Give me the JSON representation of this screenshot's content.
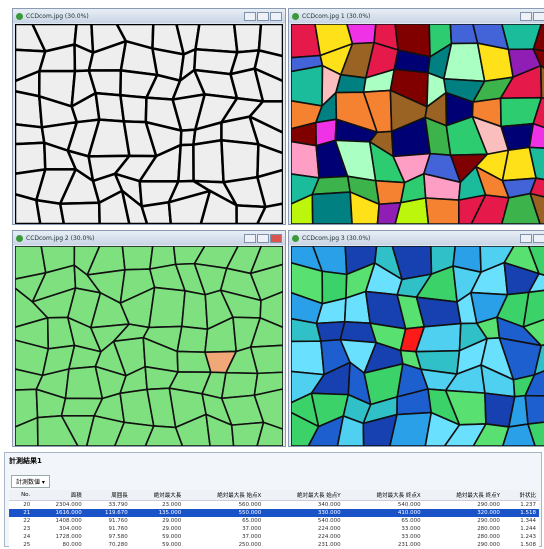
{
  "windows": [
    {
      "title": "CCDcom.jpg (30.0%)"
    },
    {
      "title": "CCDcom.jpg 1 (30.0%)"
    },
    {
      "title": "CCDcom.jpg 2 (30.0%)"
    },
    {
      "title": "CCDcom.jpg 3 (30.0%)"
    }
  ],
  "results": {
    "title": "計測結果1",
    "tab": "計測数値 ▾",
    "headers": [
      "No.",
      "面積",
      "周囲長",
      "絶対最大長",
      "絶対最大長 始点X",
      "絶対最大長 始点Y",
      "絶対最大長 終点X",
      "絶対最大長 終点Y",
      "針状比"
    ],
    "rows": [
      [
        "20",
        "2304.000",
        "33.790",
        "23.000",
        "560.000",
        "340.000",
        "540.000",
        "290.000",
        "1.237"
      ],
      [
        "21",
        "1616.000",
        "119.670",
        "135.000",
        "550.000",
        "330.000",
        "410.000",
        "320.000",
        "1.518"
      ],
      [
        "22",
        "1408.000",
        "91.760",
        "29.000",
        "65.000",
        "540.000",
        "65.000",
        "290.000",
        "1.344"
      ],
      [
        "23",
        "304.000",
        "91.760",
        "29.000",
        "37.000",
        "224.000",
        "33.000",
        "280.000",
        "1.244"
      ],
      [
        "24",
        "1728.000",
        "97.580",
        "59.000",
        "37.000",
        "224.000",
        "33.000",
        "280.000",
        "1.243"
      ],
      [
        "25",
        "80.000",
        "70.280",
        "59.000",
        "250.000",
        "231.000",
        "231.000",
        "290.000",
        "1.508"
      ]
    ]
  }
}
